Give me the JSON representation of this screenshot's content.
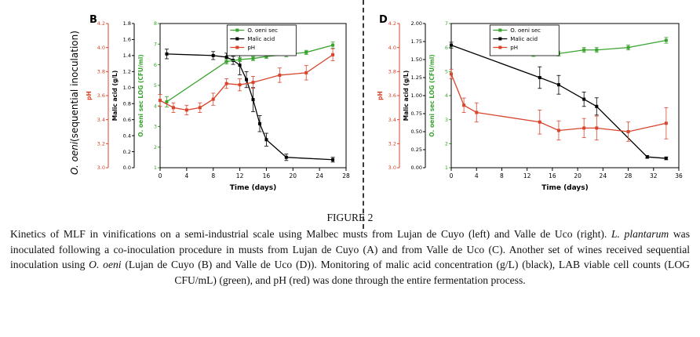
{
  "row_label": {
    "italic": "O. oeni",
    "normal": " (sequential inoculation)"
  },
  "caption": {
    "title": "FIGURE 2",
    "segments": [
      {
        "text": "Kinetics of MLF in vinifications on a semi-industrial scale using Malbec musts from Lujan de Cuyo (left) and Valle de Uco (right). ",
        "italic": false
      },
      {
        "text": "L. plantarum",
        "italic": true
      },
      {
        "text": " was inoculated following a co-inoculation procedure in musts from Lujan de Cuyo (A) and from Valle de Uco (C). Another set of wines received sequential inoculation using ",
        "italic": false
      },
      {
        "text": "O. oeni",
        "italic": true
      },
      {
        "text": " (Lujan de Cuyo (B) and Valle de Uco (D)). Monitoring of malic acid concentration (g/L) (black), LAB viable cell counts (LOG CFU/mL) (green), and pH (red) was done through the entire fermentation process.",
        "italic": false
      }
    ]
  },
  "chart_data": [
    {
      "type": "line",
      "panel_label": "B",
      "xlabel": "Time (days)",
      "x_range": [
        0,
        28
      ],
      "x_ticks": [
        0,
        4,
        8,
        12,
        16,
        20,
        24,
        28
      ],
      "legend_x_frac": 0.36,
      "y_axes": [
        {
          "id": "ph",
          "label": "pH",
          "color": "#d8442c",
          "range": [
            3.0,
            4.2
          ],
          "ticks": [
            "3.0",
            "3.2",
            "3.4",
            "3.6",
            "3.8",
            "4.0",
            "4.2"
          ]
        },
        {
          "id": "malic",
          "label": "Malic acid (g/L)",
          "color": "#000000",
          "range": [
            0.0,
            1.8
          ],
          "ticks": [
            "0.0",
            "0.2",
            "0.4",
            "0.6",
            "0.8",
            "1.0",
            "1.2",
            "1.4",
            "1.6",
            "1.8"
          ]
        },
        {
          "id": "log",
          "label": "O. oeni sec LOG (CFU/ml)",
          "color": "#3aa32f",
          "range": [
            1,
            8
          ],
          "ticks": [
            "1",
            "2",
            "3",
            "4",
            "5",
            "6",
            "7",
            "8"
          ]
        }
      ],
      "legend": [
        {
          "label": "O. oeni sec",
          "color": "#3aa32f"
        },
        {
          "label": "Malic acid",
          "color": "#000000"
        },
        {
          "label": "pH",
          "color": "#d8442c"
        }
      ],
      "series": [
        {
          "name": "Malic acid",
          "axis": "malic",
          "color": "#000000",
          "x": [
            1,
            8,
            10,
            11,
            12,
            13,
            14,
            15,
            16,
            19,
            26
          ],
          "y": [
            1.42,
            1.4,
            1.38,
            1.34,
            1.28,
            1.1,
            0.85,
            0.55,
            0.35,
            0.13,
            0.1
          ],
          "err": [
            0.06,
            0.05,
            0.05,
            0.05,
            0.12,
            0.1,
            0.15,
            0.1,
            0.08,
            0.04,
            0.03
          ]
        },
        {
          "name": "O. oeni sec",
          "axis": "log",
          "color": "#3aa32f",
          "x": [
            1,
            10,
            12,
            14,
            16,
            19,
            22,
            26
          ],
          "y": [
            4.2,
            6.15,
            6.25,
            6.3,
            6.4,
            6.5,
            6.6,
            6.95
          ],
          "err": [
            0.25,
            0.12,
            0.1,
            0.1,
            0.1,
            0.12,
            0.1,
            0.15
          ]
        },
        {
          "name": "pH",
          "axis": "ph",
          "color": "#d8442c",
          "x": [
            0,
            2,
            4,
            6,
            8,
            10,
            12,
            14,
            18,
            22,
            26
          ],
          "y": [
            3.56,
            3.5,
            3.48,
            3.5,
            3.57,
            3.7,
            3.69,
            3.71,
            3.77,
            3.79,
            3.94
          ],
          "err": [
            0.05,
            0.04,
            0.04,
            0.04,
            0.05,
            0.04,
            0.05,
            0.05,
            0.06,
            0.06,
            0.05
          ]
        }
      ]
    },
    {
      "type": "line",
      "panel_label": "D",
      "xlabel": "Time (days)",
      "x_range": [
        0,
        36
      ],
      "x_ticks": [
        0,
        4,
        8,
        12,
        16,
        20,
        24,
        28,
        32,
        36
      ],
      "legend_x_frac": 0.17,
      "y_axes": [
        {
          "id": "ph",
          "label": "pH",
          "color": "#d8442c",
          "range": [
            3.0,
            4.2
          ],
          "ticks": [
            "3.0",
            "3.2",
            "3.4",
            "3.6",
            "3.8",
            "4.0",
            "4.2"
          ]
        },
        {
          "id": "malic",
          "label": "Malic acid (g/L)",
          "color": "#000000",
          "range": [
            0.0,
            2.0
          ],
          "ticks": [
            "0.00",
            "0.25",
            "0.50",
            "0.75",
            "1.00",
            "1.25",
            "1.50",
            "1.75",
            "2.00"
          ]
        },
        {
          "id": "log",
          "label": "O. oeni sec LOG (CFU/ml)",
          "color": "#3aa32f",
          "range": [
            1,
            7
          ],
          "ticks": [
            "1",
            "2",
            "3",
            "4",
            "5",
            "6",
            "7"
          ]
        }
      ],
      "legend": [
        {
          "label": "O. oeni sec",
          "color": "#3aa32f"
        },
        {
          "label": "Malic acid",
          "color": "#000000"
        },
        {
          "label": "pH",
          "color": "#d8442c"
        }
      ],
      "series": [
        {
          "name": "Malic acid",
          "axis": "malic",
          "color": "#000000",
          "x": [
            0,
            14,
            17,
            21,
            23,
            31,
            34
          ],
          "y": [
            1.7,
            1.25,
            1.15,
            0.95,
            0.85,
            0.15,
            0.13
          ],
          "err": [
            0.04,
            0.15,
            0.13,
            0.1,
            0.12,
            0.02,
            0.02
          ]
        },
        {
          "name": "O. oeni sec",
          "axis": "log",
          "color": "#3aa32f",
          "x": [
            13,
            17,
            21,
            23,
            28,
            34
          ],
          "y": [
            5.75,
            5.75,
            5.9,
            5.9,
            6.0,
            6.3
          ],
          "err": [
            0.12,
            0.1,
            0.1,
            0.1,
            0.1,
            0.12
          ]
        },
        {
          "name": "pH",
          "axis": "ph",
          "color": "#d8442c",
          "x": [
            0,
            2,
            4,
            14,
            17,
            21,
            23,
            28,
            34
          ],
          "y": [
            3.78,
            3.52,
            3.46,
            3.38,
            3.31,
            3.33,
            3.33,
            3.3,
            3.37
          ],
          "err": [
            0.04,
            0.06,
            0.08,
            0.1,
            0.08,
            0.08,
            0.1,
            0.08,
            0.13
          ]
        }
      ]
    }
  ]
}
